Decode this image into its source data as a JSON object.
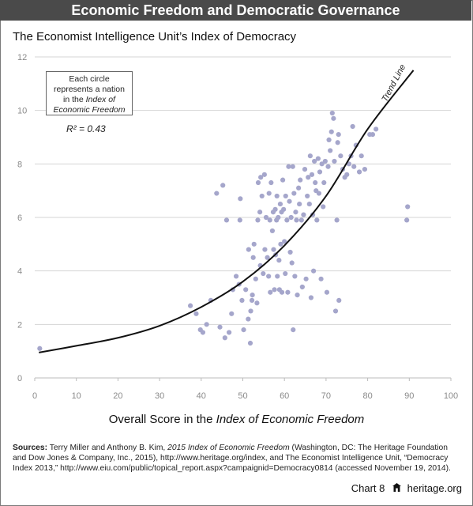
{
  "header": {
    "title": "Economic Freedom and Democratic Governance"
  },
  "chart_data": {
    "type": "scatter",
    "title": "The Economist Intelligence Unit’s Index of Democracy",
    "xlabel_prefix": "Overall Score in the ",
    "xlabel_italic": "Index of Economic Freedom",
    "ylabel": "",
    "xlim": [
      0,
      100
    ],
    "ylim": [
      0,
      12
    ],
    "xticks": [
      "0",
      "10",
      "20",
      "30",
      "40",
      "50",
      "60",
      "70",
      "80",
      "90",
      "100"
    ],
    "yticks": [
      "0",
      "2",
      "4",
      "6",
      "8",
      "10",
      "12"
    ],
    "grid": true,
    "point_color": "#a5a6cb",
    "trend_color": "#111111",
    "annotation": {
      "line1": "Each circle",
      "line2": "represents a nation",
      "line3_prefix": "in the ",
      "line3_italic": "Index of",
      "line4_italic": "Economic Freedom"
    },
    "r_squared": "R² = 0.43",
    "trend_label": "Trend Line",
    "trend_line": [
      [
        1,
        0.95
      ],
      [
        10,
        1.2
      ],
      [
        20,
        1.5
      ],
      [
        30,
        1.95
      ],
      [
        40,
        2.65
      ],
      [
        50,
        3.6
      ],
      [
        60,
        4.95
      ],
      [
        70,
        6.8
      ],
      [
        80,
        9.3
      ],
      [
        91,
        11.5
      ]
    ],
    "points": [
      [
        1.2,
        1.1
      ],
      [
        37.4,
        2.7
      ],
      [
        38.8,
        2.4
      ],
      [
        39.8,
        1.8
      ],
      [
        40.4,
        1.7
      ],
      [
        41.3,
        2.0
      ],
      [
        42.3,
        2.9
      ],
      [
        43.7,
        6.9
      ],
      [
        44.5,
        1.9
      ],
      [
        45.2,
        7.2
      ],
      [
        45.7,
        1.5
      ],
      [
        46.1,
        5.9
      ],
      [
        46.7,
        1.7
      ],
      [
        47.3,
        2.4
      ],
      [
        47.6,
        3.3
      ],
      [
        48.4,
        3.8
      ],
      [
        49.1,
        3.5
      ],
      [
        49.3,
        5.9
      ],
      [
        49.4,
        6.7
      ],
      [
        49.8,
        2.9
      ],
      [
        50.2,
        1.8
      ],
      [
        50.7,
        3.3
      ],
      [
        51.3,
        2.2
      ],
      [
        51.4,
        4.8
      ],
      [
        51.8,
        1.3
      ],
      [
        51.9,
        2.5
      ],
      [
        52.2,
        2.9
      ],
      [
        52.3,
        3.1
      ],
      [
        52.5,
        4.5
      ],
      [
        52.7,
        5.0
      ],
      [
        53.1,
        3.7
      ],
      [
        53.4,
        2.8
      ],
      [
        53.6,
        5.9
      ],
      [
        53.7,
        7.3
      ],
      [
        54.1,
        6.2
      ],
      [
        54.2,
        4.2
      ],
      [
        54.3,
        7.5
      ],
      [
        54.6,
        6.8
      ],
      [
        54.9,
        3.9
      ],
      [
        55.2,
        7.6
      ],
      [
        55.3,
        4.8
      ],
      [
        55.6,
        6.0
      ],
      [
        55.9,
        4.5
      ],
      [
        56.2,
        3.8
      ],
      [
        56.3,
        6.9
      ],
      [
        56.5,
        5.9
      ],
      [
        56.6,
        3.2
      ],
      [
        56.8,
        7.3
      ],
      [
        57.1,
        5.5
      ],
      [
        57.3,
        6.2
      ],
      [
        57.4,
        4.8
      ],
      [
        57.6,
        3.3
      ],
      [
        57.8,
        6.3
      ],
      [
        57.9,
        4.6
      ],
      [
        58.1,
        5.9
      ],
      [
        58.2,
        6.8
      ],
      [
        58.3,
        3.8
      ],
      [
        58.5,
        6.0
      ],
      [
        58.7,
        4.4
      ],
      [
        58.8,
        3.3
      ],
      [
        59.0,
        6.5
      ],
      [
        59.1,
        5.0
      ],
      [
        59.3,
        6.2
      ],
      [
        59.4,
        3.2
      ],
      [
        59.6,
        7.4
      ],
      [
        59.8,
        6.3
      ],
      [
        60.0,
        5.1
      ],
      [
        60.2,
        3.9
      ],
      [
        60.3,
        6.8
      ],
      [
        60.6,
        5.9
      ],
      [
        60.8,
        3.2
      ],
      [
        61.0,
        7.9
      ],
      [
        61.2,
        6.6
      ],
      [
        61.4,
        4.7
      ],
      [
        61.6,
        6.0
      ],
      [
        61.8,
        4.3
      ],
      [
        62.0,
        7.9
      ],
      [
        62.1,
        1.8
      ],
      [
        62.3,
        6.9
      ],
      [
        62.5,
        3.8
      ],
      [
        62.7,
        6.2
      ],
      [
        62.9,
        5.9
      ],
      [
        63.1,
        3.1
      ],
      [
        63.4,
        7.1
      ],
      [
        63.6,
        6.5
      ],
      [
        63.8,
        7.4
      ],
      [
        64.1,
        5.9
      ],
      [
        64.3,
        3.4
      ],
      [
        64.6,
        6.1
      ],
      [
        64.9,
        7.8
      ],
      [
        65.2,
        3.7
      ],
      [
        65.5,
        6.8
      ],
      [
        65.7,
        7.5
      ],
      [
        66.0,
        6.5
      ],
      [
        66.2,
        8.3
      ],
      [
        66.4,
        3.0
      ],
      [
        66.6,
        7.6
      ],
      [
        66.8,
        6.1
      ],
      [
        67.0,
        4.0
      ],
      [
        67.2,
        8.1
      ],
      [
        67.4,
        7.3
      ],
      [
        67.6,
        7.0
      ],
      [
        67.8,
        5.9
      ],
      [
        68.1,
        8.2
      ],
      [
        68.3,
        6.9
      ],
      [
        68.5,
        7.7
      ],
      [
        68.8,
        3.7
      ],
      [
        69.0,
        8.0
      ],
      [
        69.3,
        6.4
      ],
      [
        69.5,
        7.3
      ],
      [
        69.8,
        8.1
      ],
      [
        70.2,
        3.2
      ],
      [
        70.5,
        7.9
      ],
      [
        70.7,
        8.9
      ],
      [
        71.0,
        8.5
      ],
      [
        71.3,
        9.2
      ],
      [
        71.5,
        9.9
      ],
      [
        71.8,
        9.7
      ],
      [
        72.0,
        8.1
      ],
      [
        72.3,
        2.5
      ],
      [
        72.6,
        5.9
      ],
      [
        72.8,
        8.8
      ],
      [
        73.0,
        9.1
      ],
      [
        73.1,
        2.9
      ],
      [
        73.5,
        8.3
      ],
      [
        74.0,
        7.8
      ],
      [
        74.5,
        7.5
      ],
      [
        75.0,
        7.6
      ],
      [
        75.5,
        8.0
      ],
      [
        76.0,
        8.3
      ],
      [
        76.4,
        9.4
      ],
      [
        76.7,
        7.9
      ],
      [
        77.2,
        8.7
      ],
      [
        78.0,
        7.7
      ],
      [
        78.5,
        8.3
      ],
      [
        79.3,
        7.8
      ],
      [
        80.5,
        9.1
      ],
      [
        81.2,
        9.1
      ],
      [
        82.0,
        9.3
      ],
      [
        89.4,
        5.9
      ],
      [
        89.6,
        6.4
      ]
    ]
  },
  "sources": {
    "label": "Sources:",
    "text1": " Terry Miller and Anthony B. Kim, ",
    "italic1": "2015 Index of Economic Freedom",
    "text2": " (Washington, DC: The Heritage Foundation and Dow Jones & Company, Inc., 2015), http://www.heritage.org/index, and The Economist Intelligence Unit, “Democracy Index 2013,” http://www.eiu.com/public/topical_report.aspx?campaignid=Democracy0814 (accessed November 19, 2014)."
  },
  "footer": {
    "chart_label": "Chart 8",
    "site": "heritage.org",
    "logo_icon": "heritage-house-icon"
  }
}
